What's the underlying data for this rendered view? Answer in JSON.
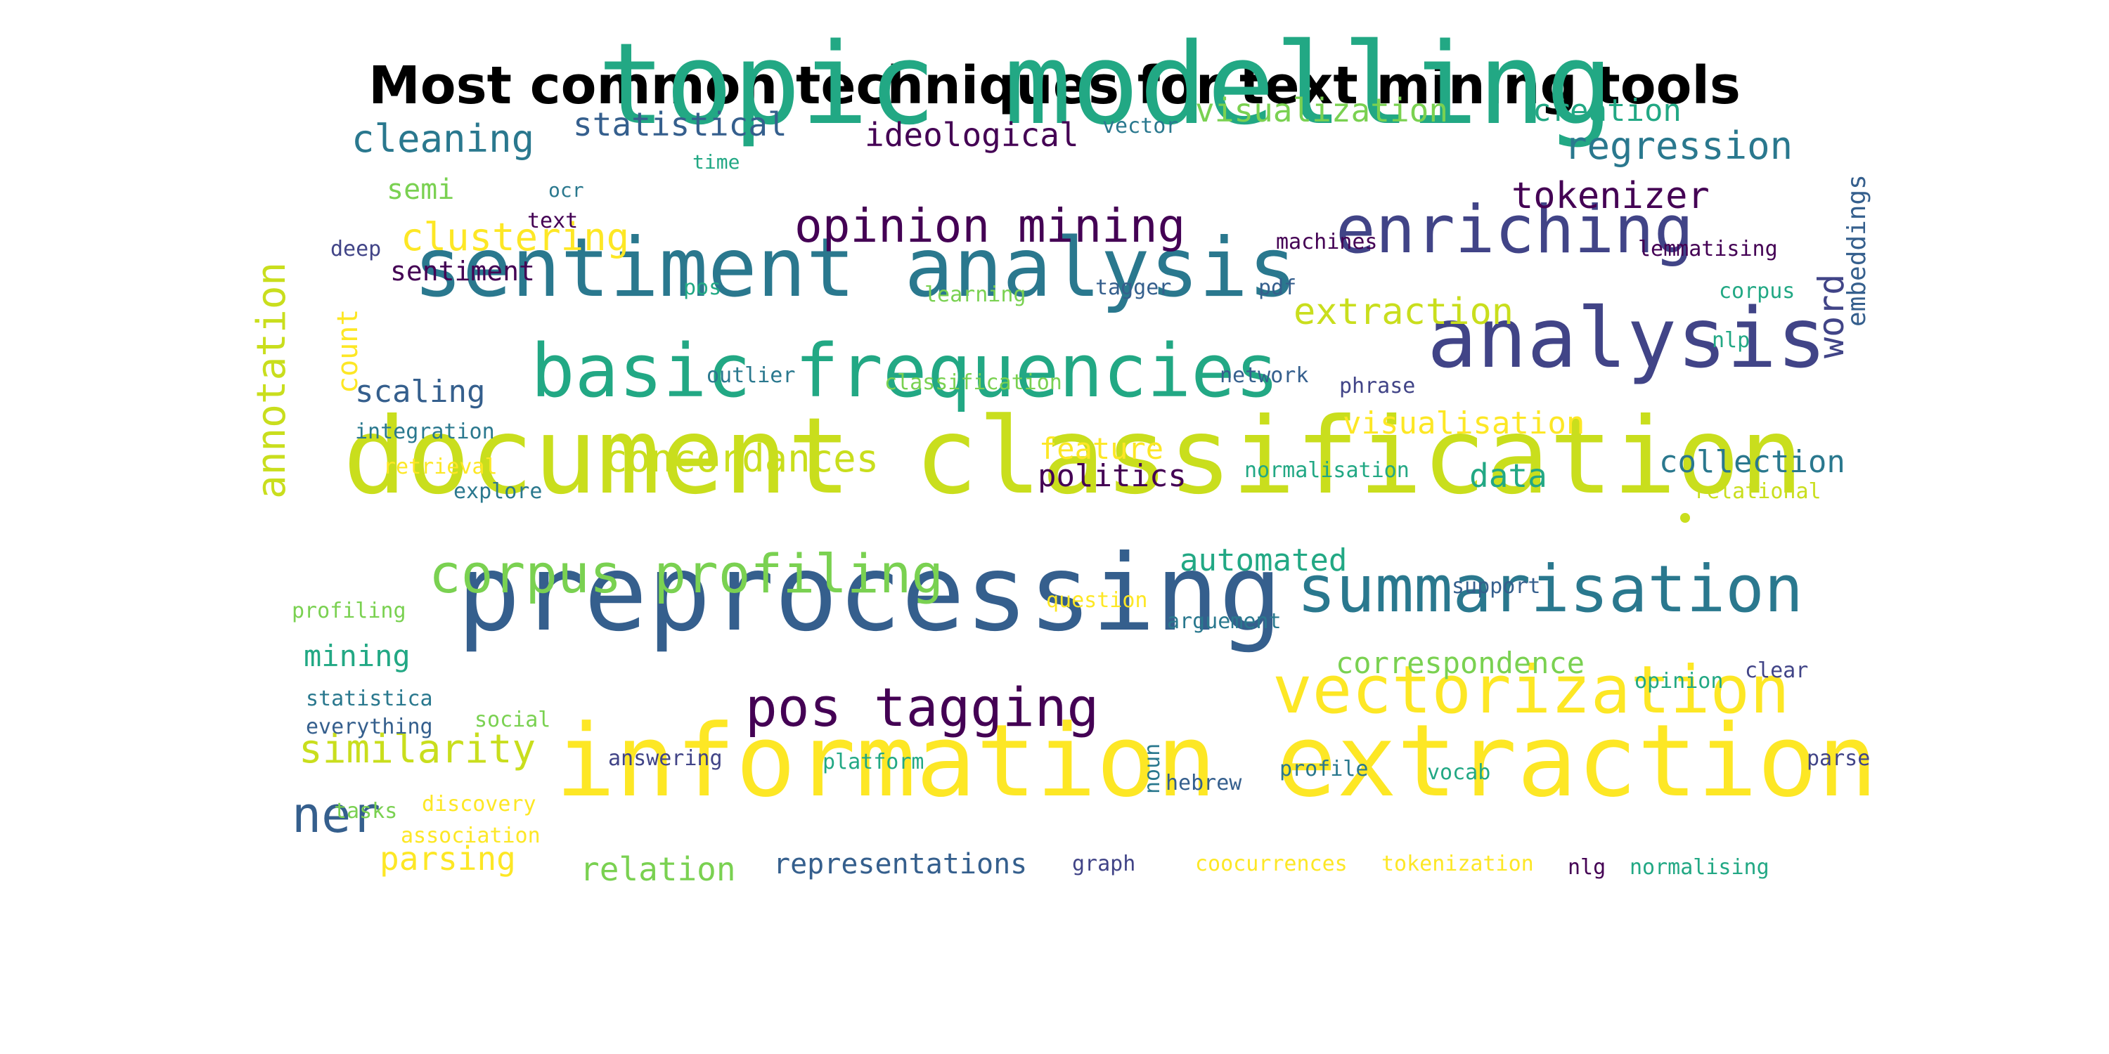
{
  "title": "Most common techniques for text mining tools",
  "palette": {
    "yellow": "#fde725",
    "lime": "#c9de1d",
    "lightgreen": "#7ad151",
    "green": "#22a884",
    "teal": "#2a788e",
    "blue": "#355f8d",
    "indigo": "#414487",
    "purple": "#440154"
  },
  "words": [
    {
      "text": "topic modelling",
      "color": "green",
      "rot": false
    },
    {
      "text": "document classification",
      "color": "lime",
      "rot": false
    },
    {
      "text": "information extraction",
      "color": "yellow",
      "rot": false
    },
    {
      "text": "preprocessing",
      "color": "blue",
      "rot": false
    },
    {
      "text": "sentiment analysis",
      "color": "teal",
      "rot": false
    },
    {
      "text": "basic frequencies",
      "color": "green",
      "rot": false
    },
    {
      "text": "analysis",
      "color": "indigo",
      "rot": false
    },
    {
      "text": "summarisation",
      "color": "teal",
      "rot": false
    },
    {
      "text": "vectorization",
      "color": "yellow",
      "rot": false
    },
    {
      "text": "enriching",
      "color": "indigo",
      "rot": false
    },
    {
      "text": "corpus profiling",
      "color": "lightgreen",
      "rot": false
    },
    {
      "text": "pos tagging",
      "color": "purple",
      "rot": false
    },
    {
      "text": "opinion mining",
      "color": "purple",
      "rot": false
    },
    {
      "text": "ner",
      "color": "blue",
      "rot": false
    },
    {
      "text": "annotation",
      "color": "lime",
      "rot": true
    },
    {
      "text": "similarity",
      "color": "lime",
      "rot": false
    },
    {
      "text": "clustering",
      "color": "yellow",
      "rot": false
    },
    {
      "text": "cleaning",
      "color": "teal",
      "rot": false
    },
    {
      "text": "regression",
      "color": "teal",
      "rot": false
    },
    {
      "text": "tokenizer",
      "color": "purple",
      "rot": false
    },
    {
      "text": "extraction",
      "color": "lime",
      "rot": false
    },
    {
      "text": "concordances",
      "color": "lime",
      "rot": false
    },
    {
      "text": "visualization",
      "color": "lightgreen",
      "rot": false
    },
    {
      "text": "visualisation",
      "color": "yellow",
      "rot": false
    },
    {
      "text": "statistical",
      "color": "blue",
      "rot": false
    },
    {
      "text": "ideological",
      "color": "purple",
      "rot": false
    },
    {
      "text": "creation",
      "color": "green",
      "rot": false
    },
    {
      "text": "collection",
      "color": "teal",
      "rot": false
    },
    {
      "text": "correspondence",
      "color": "lightgreen",
      "rot": false
    },
    {
      "text": "word",
      "color": "indigo",
      "rot": true
    },
    {
      "text": "parsing",
      "color": "yellow",
      "rot": false
    },
    {
      "text": "relation",
      "color": "lightgreen",
      "rot": false
    },
    {
      "text": "representations",
      "color": "blue",
      "rot": false
    },
    {
      "text": "automated",
      "color": "green",
      "rot": false
    },
    {
      "text": "data",
      "color": "green",
      "rot": false
    },
    {
      "text": "politics",
      "color": "purple",
      "rot": false
    },
    {
      "text": "scaling",
      "color": "blue",
      "rot": false
    },
    {
      "text": "mining",
      "color": "green",
      "rot": false
    },
    {
      "text": "semi",
      "color": "lightgreen",
      "rot": false
    },
    {
      "text": "sentiment",
      "color": "purple",
      "rot": false
    },
    {
      "text": "feature",
      "color": "yellow",
      "rot": false
    },
    {
      "text": "count",
      "color": "yellow",
      "rot": true
    },
    {
      "text": "embeddings",
      "color": "blue",
      "rot": true
    },
    {
      "text": "integration",
      "color": "teal",
      "rot": false
    },
    {
      "text": "retrieval",
      "color": "yellow",
      "rot": false
    },
    {
      "text": "explore",
      "color": "teal",
      "rot": false
    },
    {
      "text": "profiling",
      "color": "lightgreen",
      "rot": false
    },
    {
      "text": "statistica",
      "color": "teal",
      "rot": false
    },
    {
      "text": "everything",
      "color": "blue",
      "rot": false
    },
    {
      "text": "social",
      "color": "lightgreen",
      "rot": false
    },
    {
      "text": "answering",
      "color": "indigo",
      "rot": false
    },
    {
      "text": "platform",
      "color": "green",
      "rot": false
    },
    {
      "text": "discovery",
      "color": "yellow",
      "rot": false
    },
    {
      "text": "tasks",
      "color": "lightgreen",
      "rot": false
    },
    {
      "text": "association",
      "color": "yellow",
      "rot": false
    },
    {
      "text": "noun",
      "color": "teal",
      "rot": true
    },
    {
      "text": "hebrew",
      "color": "blue",
      "rot": false
    },
    {
      "text": "profile",
      "color": "teal",
      "rot": false
    },
    {
      "text": "vocab",
      "color": "green",
      "rot": false
    },
    {
      "text": "parse",
      "color": "indigo",
      "rot": false
    },
    {
      "text": "graph",
      "color": "indigo",
      "rot": false
    },
    {
      "text": "coocurrences",
      "color": "yellow",
      "rot": false
    },
    {
      "text": "tokenization",
      "color": "yellow",
      "rot": false
    },
    {
      "text": "nlg",
      "color": "purple",
      "rot": false
    },
    {
      "text": "normalising",
      "color": "green",
      "rot": false
    },
    {
      "text": "question",
      "color": "yellow",
      "rot": false
    },
    {
      "text": "arguement",
      "color": "teal",
      "rot": false
    },
    {
      "text": "support",
      "color": "blue",
      "rot": false
    },
    {
      "text": "opinion",
      "color": "green",
      "rot": false
    },
    {
      "text": "clear",
      "color": "indigo",
      "rot": false
    },
    {
      "text": "normalisation",
      "color": "green",
      "rot": false
    },
    {
      "text": "relational",
      "color": "lime",
      "rot": false
    },
    {
      "text": "outlier",
      "color": "teal",
      "rot": false
    },
    {
      "text": "classification",
      "color": "lightgreen",
      "rot": false
    },
    {
      "text": "network",
      "color": "blue",
      "rot": false
    },
    {
      "text": "phrase",
      "color": "indigo",
      "rot": false
    },
    {
      "text": "learning",
      "color": "lightgreen",
      "rot": false
    },
    {
      "text": "tagger",
      "color": "blue",
      "rot": false
    },
    {
      "text": "pdf",
      "color": "blue",
      "rot": false
    },
    {
      "text": "pos",
      "color": "green",
      "rot": false
    },
    {
      "text": "machines",
      "color": "purple",
      "rot": false
    },
    {
      "text": "lemmatising",
      "color": "purple",
      "rot": false
    },
    {
      "text": "corpus",
      "color": "green",
      "rot": false
    },
    {
      "text": "nlp",
      "color": "green",
      "rot": false
    },
    {
      "text": "vector",
      "color": "teal",
      "rot": false
    },
    {
      "text": "time",
      "color": "green",
      "rot": false
    },
    {
      "text": "ocr",
      "color": "teal",
      "rot": false
    },
    {
      "text": "text",
      "color": "purple",
      "rot": false
    },
    {
      "text": "deep",
      "color": "indigo",
      "rot": false
    }
  ]
}
